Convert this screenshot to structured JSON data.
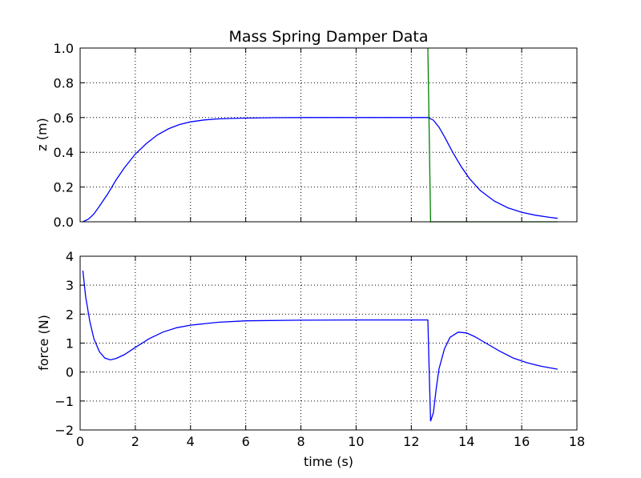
{
  "chart_data": [
    {
      "type": "line",
      "title": "Mass Spring Damper Data",
      "xlabel": "",
      "ylabel": "z (m)",
      "xlim": [
        0,
        18
      ],
      "ylim": [
        0.0,
        1.0
      ],
      "grid": true,
      "x_ticks": [
        0,
        2,
        4,
        6,
        8,
        10,
        12,
        14,
        16,
        18
      ],
      "y_ticks": [
        0.0,
        0.2,
        0.4,
        0.6,
        0.8,
        1.0
      ],
      "y_tick_labels": [
        "0.0",
        "0.2",
        "0.4",
        "0.6",
        "0.8",
        "1.0"
      ],
      "show_x_tick_labels": false,
      "series": [
        {
          "color": "#0000ff",
          "x": [
            0.1,
            0.3,
            0.5,
            0.7,
            1.0,
            1.3,
            1.6,
            2.0,
            2.4,
            2.8,
            3.2,
            3.6,
            4.0,
            4.5,
            5.0,
            5.5,
            6.0,
            7.0,
            8.0,
            9.0,
            10.0,
            11.0,
            12.0,
            12.6,
            12.8,
            13.0,
            13.2,
            13.5,
            13.8,
            14.1,
            14.5,
            15.0,
            15.5,
            16.0,
            16.5,
            17.0,
            17.3
          ],
          "y": [
            0.0,
            0.015,
            0.045,
            0.09,
            0.16,
            0.24,
            0.31,
            0.39,
            0.45,
            0.5,
            0.535,
            0.56,
            0.575,
            0.586,
            0.592,
            0.595,
            0.597,
            0.599,
            0.6,
            0.6,
            0.6,
            0.6,
            0.6,
            0.6,
            0.585,
            0.545,
            0.49,
            0.4,
            0.32,
            0.25,
            0.18,
            0.12,
            0.08,
            0.055,
            0.038,
            0.026,
            0.02
          ]
        },
        {
          "color": "#008000",
          "x": [
            12.6,
            12.7,
            12.8,
            17.3
          ],
          "y": [
            1.0,
            0.0,
            0.0,
            0.0
          ]
        }
      ]
    },
    {
      "type": "line",
      "title": "",
      "xlabel": "time (s)",
      "ylabel": "force (N)",
      "xlim": [
        0,
        18
      ],
      "ylim": [
        -2,
        4
      ],
      "grid": true,
      "x_ticks": [
        0,
        2,
        4,
        6,
        8,
        10,
        12,
        14,
        16,
        18
      ],
      "x_tick_labels": [
        "0",
        "2",
        "4",
        "6",
        "8",
        "10",
        "12",
        "14",
        "16",
        "18"
      ],
      "y_ticks": [
        -2,
        -1,
        0,
        1,
        2,
        3,
        4
      ],
      "y_tick_labels": [
        "−2",
        "−1",
        "0",
        "1",
        "2",
        "3",
        "4"
      ],
      "show_x_tick_labels": true,
      "series": [
        {
          "color": "#0000ff",
          "x": [
            0.1,
            0.2,
            0.35,
            0.5,
            0.7,
            0.9,
            1.1,
            1.3,
            1.6,
            2.0,
            2.5,
            3.0,
            3.5,
            4.0,
            5.0,
            6.0,
            8.0,
            10.0,
            12.0,
            12.6,
            12.65,
            12.7,
            12.8,
            12.9,
            13.0,
            13.2,
            13.4,
            13.7,
            14.0,
            14.3,
            14.7,
            15.2,
            15.7,
            16.2,
            16.7,
            17.3
          ],
          "y": [
            3.5,
            2.6,
            1.75,
            1.15,
            0.7,
            0.48,
            0.42,
            0.47,
            0.6,
            0.85,
            1.15,
            1.38,
            1.53,
            1.62,
            1.72,
            1.77,
            1.79,
            1.8,
            1.8,
            1.8,
            0.0,
            -1.7,
            -1.4,
            -0.6,
            0.1,
            0.8,
            1.2,
            1.38,
            1.35,
            1.22,
            1.0,
            0.72,
            0.48,
            0.32,
            0.2,
            0.1
          ]
        }
      ]
    }
  ]
}
